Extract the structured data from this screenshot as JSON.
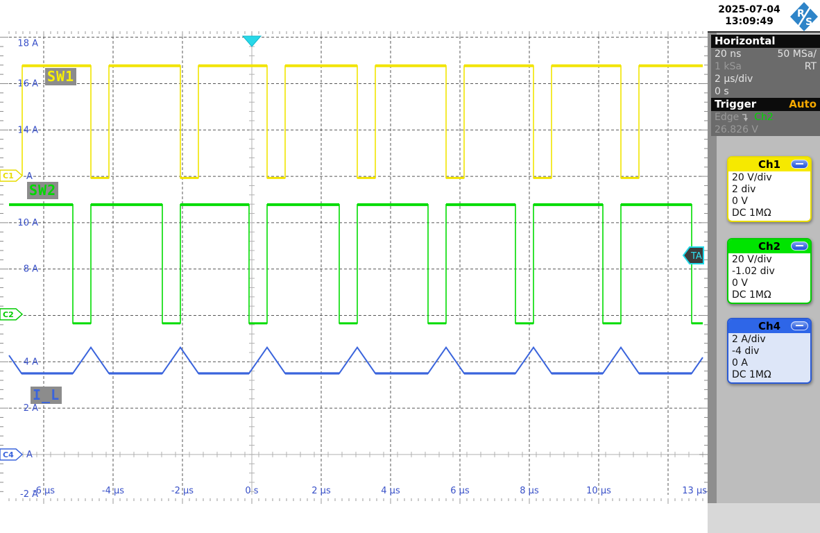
{
  "header": {
    "date": "2025-07-04",
    "time": "13:09:49",
    "logo_letters": [
      "R",
      "S"
    ]
  },
  "panels": {
    "horizontal": {
      "title": "Horizontal",
      "resolution": "20 ns",
      "sample_rate": "50 MSa/",
      "record_length": "1 kSa",
      "acq_mode": "RT",
      "time_scale": "2 µs/div",
      "position": "0 s"
    },
    "trigger": {
      "title": "Trigger",
      "mode": "Auto",
      "type": "Edge",
      "slope_icon": "falling-edge-icon",
      "source": "Ch2",
      "level": "26.826 V"
    }
  },
  "channels": [
    {
      "label": "Ch1",
      "scale": "20 V/div",
      "position": "2 div",
      "offset": "0 V",
      "coupling": "DC 1MΩ",
      "color": "#f2e400",
      "trace_label": "SW1"
    },
    {
      "label": "Ch2",
      "scale": "20 V/div",
      "position": "-1.02 div",
      "offset": "0 V",
      "coupling": "DC 1MΩ",
      "color": "#00dc00",
      "trace_label": "SW2"
    },
    {
      "label": "Ch4",
      "scale": "2 A/div",
      "position": "-4 div",
      "offset": "0 A",
      "coupling": "DC 1MΩ",
      "color": "#3a64dc",
      "trace_label": "I_L"
    }
  ],
  "graticule": {
    "y_unit": "A",
    "x_unit": "µs",
    "label_color": "#3850c8",
    "y_labels": [
      {
        "a": 18,
        "text": "18 A"
      },
      {
        "a": 16,
        "text": "16 A"
      },
      {
        "a": 14,
        "text": "14 A"
      },
      {
        "a": 12,
        "text": "A"
      },
      {
        "a": 10,
        "text": "10 A"
      },
      {
        "a": 8,
        "text": "8 A"
      },
      {
        "a": 6,
        "text": ""
      },
      {
        "a": 4,
        "text": "4 A"
      },
      {
        "a": 2,
        "text": "2 A"
      },
      {
        "a": 0,
        "text": "A"
      },
      {
        "a": -2,
        "text": "-2 A"
      }
    ],
    "x_labels": [
      {
        "t": -6,
        "text": "-6 µs"
      },
      {
        "t": -4,
        "text": "-4 µs"
      },
      {
        "t": -2,
        "text": "-2 µs"
      },
      {
        "t": 0,
        "text": "0 s"
      },
      {
        "t": 2,
        "text": "2 µs"
      },
      {
        "t": 4,
        "text": "4 µs"
      },
      {
        "t": 6,
        "text": "6 µs"
      },
      {
        "t": 8,
        "text": "8 µs"
      },
      {
        "t": 10,
        "text": "10 µs"
      },
      {
        "t": 12,
        "text": ""
      },
      {
        "t": 13,
        "text": "13 µs"
      }
    ]
  },
  "markers": {
    "channel_markers": [
      {
        "id": "C1",
        "a": 12.03,
        "color": "#e8dc00"
      },
      {
        "id": "C2",
        "a": 6.05,
        "color": "#00cc00"
      },
      {
        "id": "C4",
        "a": 0,
        "color": "#3a64dc"
      }
    ],
    "trigger_level_marker": {
      "id": "TA",
      "a": 8.59
    },
    "trigger_time_marker": {
      "t": 0
    }
  },
  "waveforms": {
    "note": "amplitudes in Ch4 axis units (A), time in µs as read from the graticule",
    "time_span_us": [
      -7,
      13
    ],
    "amp_span_a": [
      -1.74,
      18.26
    ],
    "sw1": {
      "channel": "Ch1",
      "color": "#f2e400",
      "start_t": -6.62,
      "start_level": 12.03,
      "high": 16.77,
      "low": 11.93,
      "low_pulses": [
        [
          -4.64,
          -4.12
        ],
        [
          -2.06,
          -1.54
        ],
        [
          0.44,
          0.96
        ],
        [
          3.04,
          3.56
        ],
        [
          5.6,
          6.12
        ],
        [
          8.12,
          8.64
        ],
        [
          10.64,
          11.16
        ]
      ]
    },
    "sw2": {
      "channel": "Ch2",
      "color": "#00dc00",
      "high": 10.78,
      "low": 5.66,
      "low_pulses": [
        [
          -5.16,
          -4.64
        ],
        [
          -2.58,
          -2.06
        ],
        [
          -0.08,
          0.44
        ],
        [
          2.52,
          3.04
        ],
        [
          5.08,
          5.6
        ],
        [
          7.6,
          8.12
        ],
        [
          10.12,
          10.64
        ],
        [
          12.68,
          13.2
        ]
      ]
    },
    "il": {
      "channel": "Ch4",
      "color": "#3a64dc",
      "base": 3.5,
      "peak": 4.62,
      "rise_time": 0.52,
      "fall_time": 0.52,
      "peak_times": [
        -7.16,
        -4.64,
        -2.06,
        0.44,
        3.04,
        5.6,
        8.12,
        10.64,
        13.2
      ]
    }
  }
}
